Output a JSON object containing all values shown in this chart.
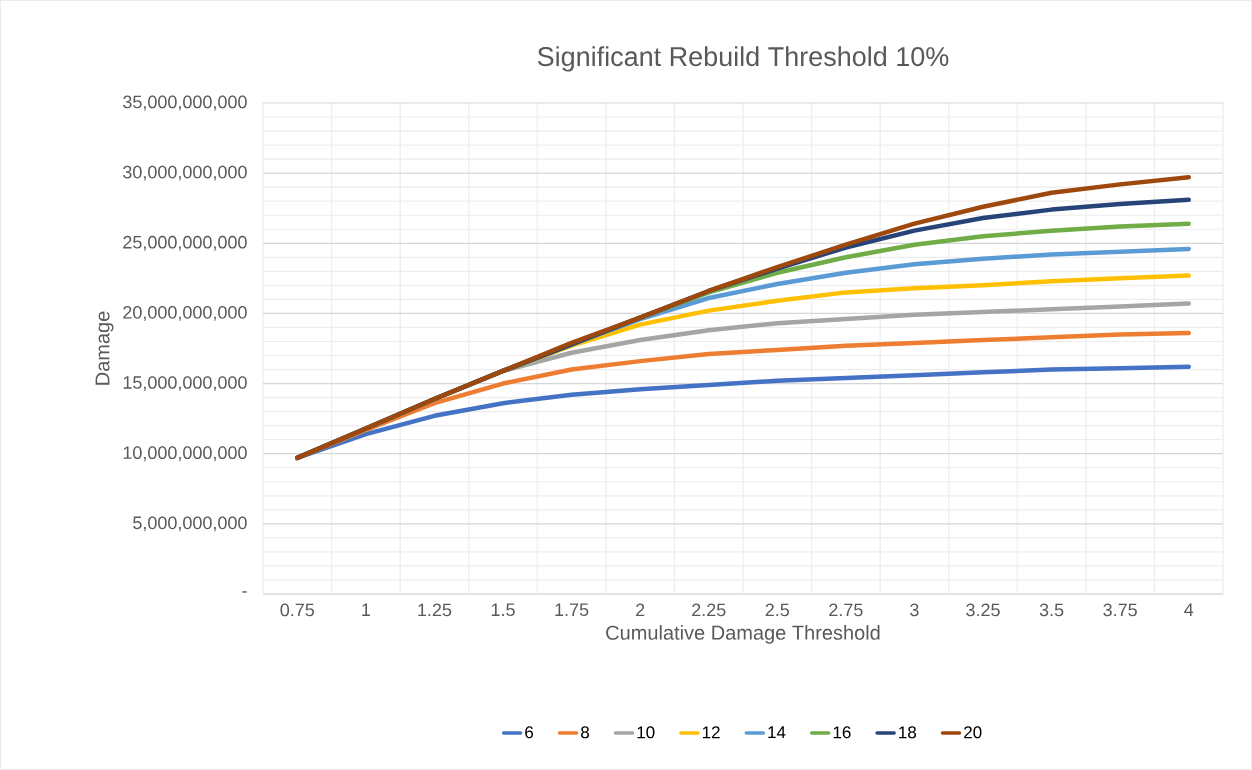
{
  "chart_data": {
    "type": "line",
    "title": "Significant Rebuild Threshold 10%",
    "xlabel": "Cumulative Damage Threshold",
    "ylabel": "Damage",
    "categories": [
      "0.75",
      "1",
      "1.25",
      "1.5",
      "1.75",
      "2",
      "2.25",
      "2.5",
      "2.75",
      "3",
      "3.25",
      "3.5",
      "3.75",
      "4"
    ],
    "series": [
      {
        "name": "6",
        "color": "#4472c4",
        "values": [
          9700000000,
          11400000000,
          12700000000,
          13600000000,
          14200000000,
          14600000000,
          14900000000,
          15200000000,
          15400000000,
          15600000000,
          15800000000,
          16000000000,
          16100000000,
          16200000000
        ]
      },
      {
        "name": "8",
        "color": "#ed7d31",
        "values": [
          9700000000,
          11700000000,
          13600000000,
          15000000000,
          16000000000,
          16600000000,
          17100000000,
          17400000000,
          17700000000,
          17900000000,
          18100000000,
          18300000000,
          18500000000,
          18600000000
        ]
      },
      {
        "name": "10",
        "color": "#a5a5a5",
        "values": [
          9700000000,
          11800000000,
          13900000000,
          15900000000,
          17200000000,
          18100000000,
          18800000000,
          19300000000,
          19600000000,
          19900000000,
          20100000000,
          20300000000,
          20500000000,
          20700000000
        ]
      },
      {
        "name": "12",
        "color": "#ffc000",
        "values": [
          null,
          null,
          null,
          15900000000,
          17700000000,
          19200000000,
          20200000000,
          20900000000,
          21500000000,
          21800000000,
          22000000000,
          22300000000,
          22500000000,
          22700000000
        ]
      },
      {
        "name": "14",
        "color": "#5b9bd5",
        "values": [
          9700000000,
          11800000000,
          13900000000,
          15900000000,
          17800000000,
          19600000000,
          21100000000,
          22100000000,
          22900000000,
          23500000000,
          23900000000,
          24200000000,
          24400000000,
          24600000000
        ]
      },
      {
        "name": "16",
        "color": "#70ad47",
        "values": [
          9700000000,
          11800000000,
          13900000000,
          15900000000,
          17800000000,
          19700000000,
          21500000000,
          22900000000,
          24000000000,
          24900000000,
          25500000000,
          25900000000,
          26200000000,
          26400000000
        ]
      },
      {
        "name": "18",
        "color": "#264478",
        "values": [
          9700000000,
          11800000000,
          13900000000,
          15900000000,
          17800000000,
          19700000000,
          21600000000,
          23200000000,
          24700000000,
          25900000000,
          26800000000,
          27400000000,
          27800000000,
          28100000000
        ]
      },
      {
        "name": "20",
        "color": "#9e480e",
        "values": [
          9700000000,
          11800000000,
          13900000000,
          15900000000,
          17900000000,
          19700000000,
          21600000000,
          23300000000,
          24900000000,
          26400000000,
          27600000000,
          28600000000,
          29200000000,
          29700000000
        ]
      }
    ],
    "ylim": [
      0,
      35000000000
    ],
    "yticks": [
      {
        "value": 0,
        "label": "-"
      },
      {
        "value": 5000000000,
        "label": "5,000,000,000"
      },
      {
        "value": 10000000000,
        "label": "10,000,000,000"
      },
      {
        "value": 15000000000,
        "label": "15,000,000,000"
      },
      {
        "value": 20000000000,
        "label": "20,000,000,000"
      },
      {
        "value": 25000000000,
        "label": "25,000,000,000"
      },
      {
        "value": 30000000000,
        "label": "30,000,000,000"
      },
      {
        "value": 35000000000,
        "label": "35,000,000,000"
      }
    ],
    "grid": true,
    "legend": "bottom",
    "marker": "none",
    "line_style": "solid"
  }
}
